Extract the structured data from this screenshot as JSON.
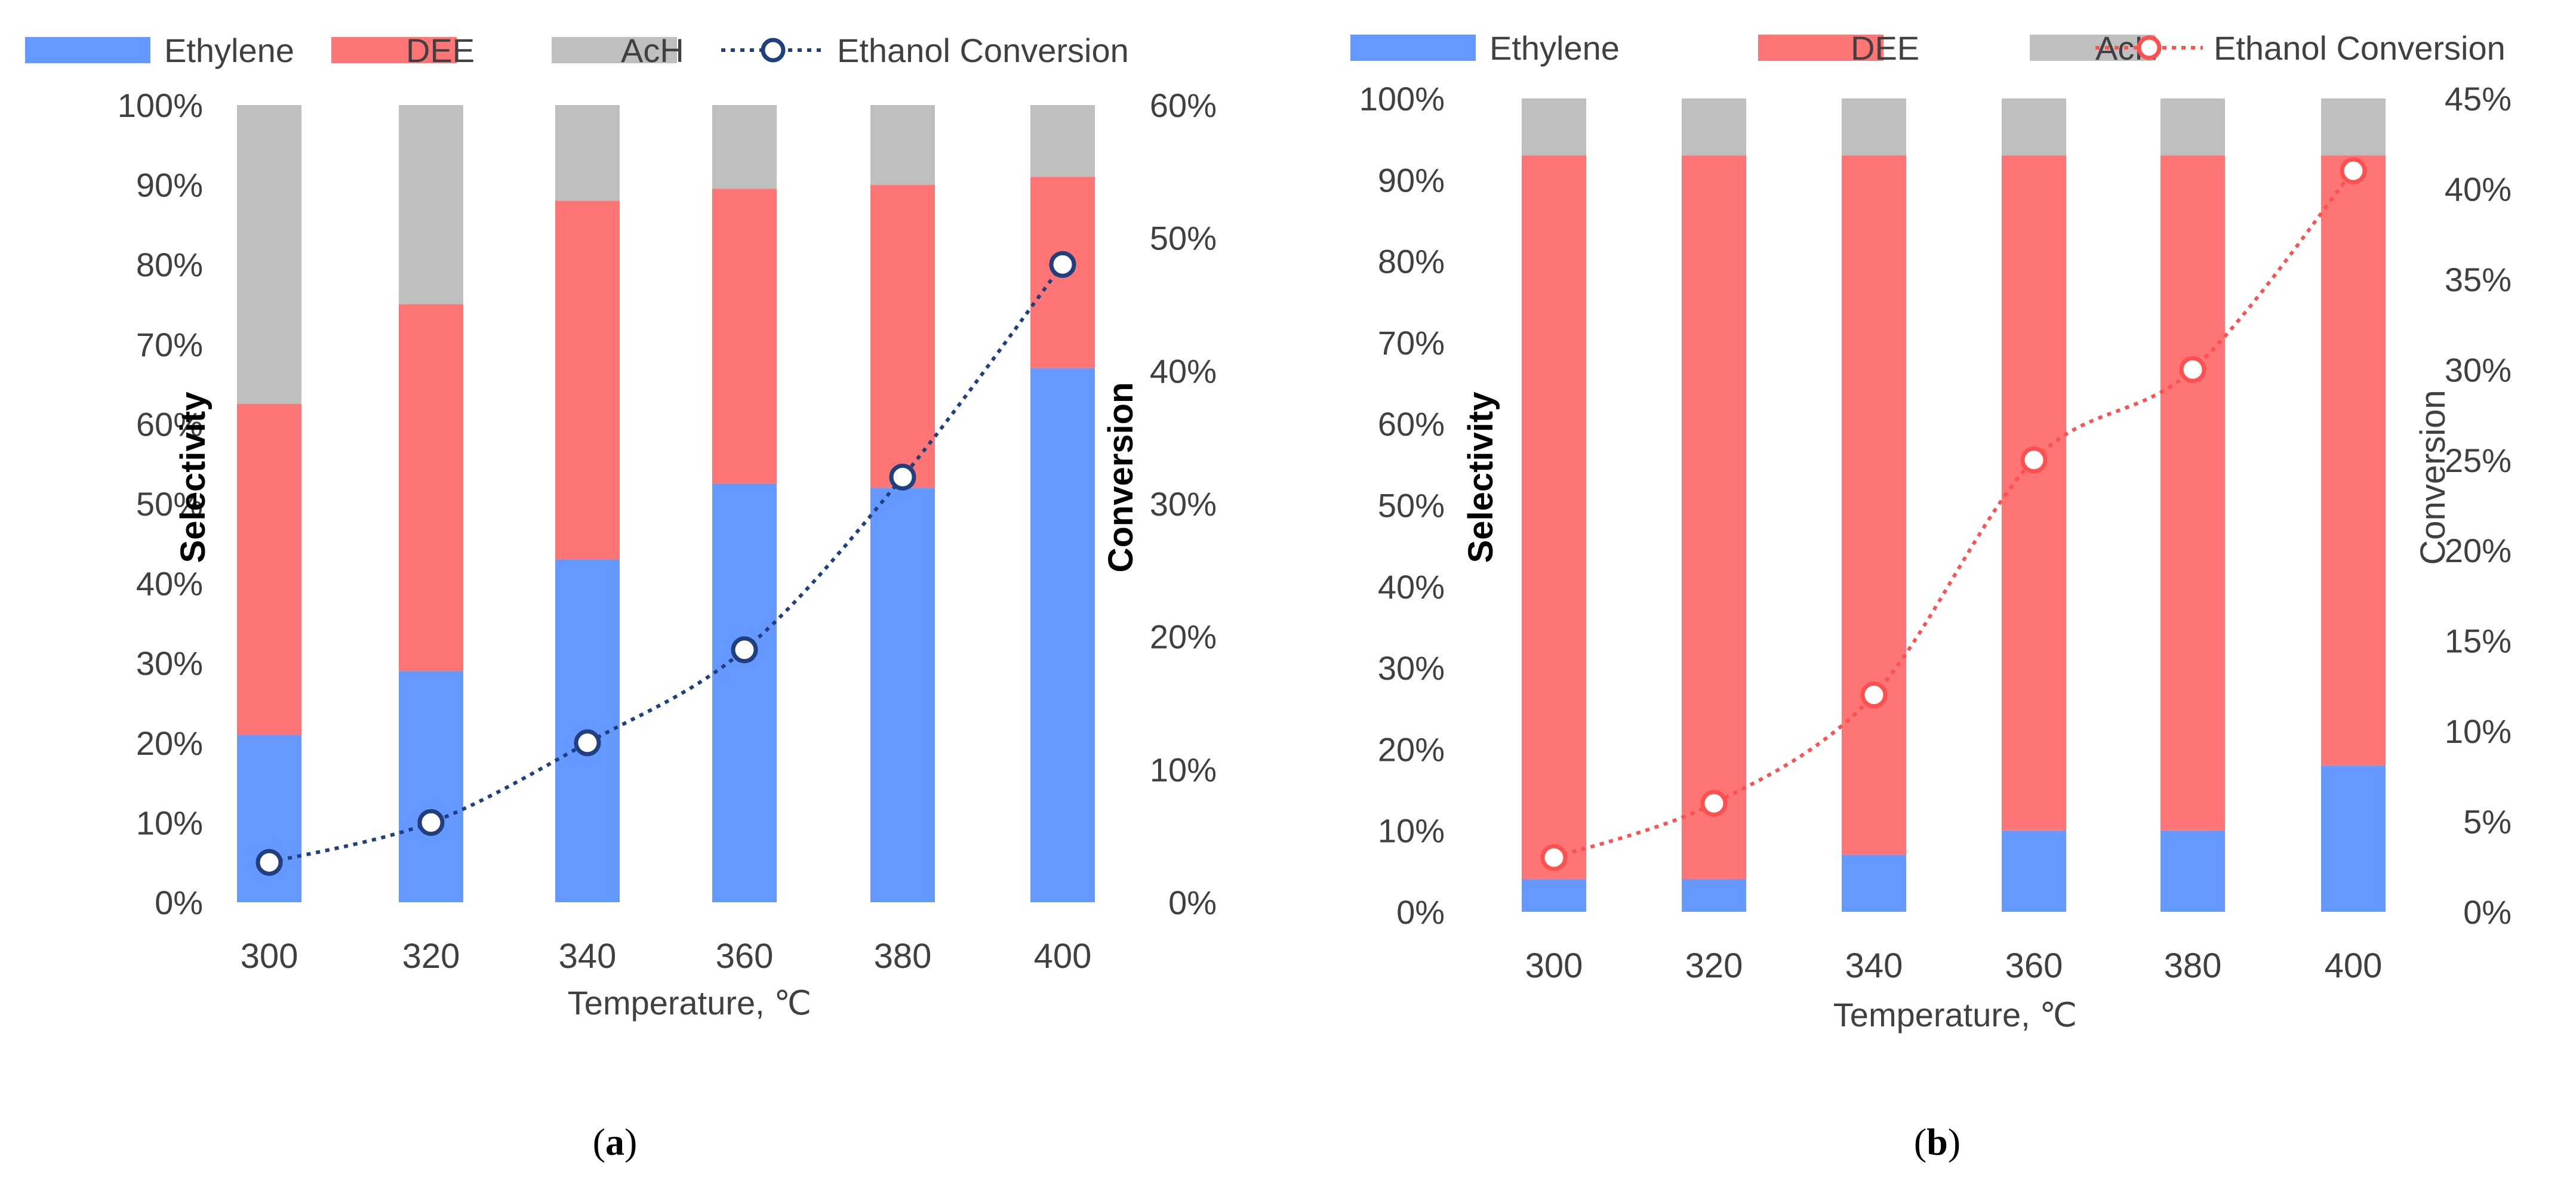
{
  "chart_data": [
    {
      "type": "bar",
      "stacked": true,
      "panel_label": "a",
      "xlabel": "Temperature, ℃",
      "ylabel": "Selectivity",
      "y2label": "Conversion",
      "categories": [
        "300",
        "320",
        "340",
        "360",
        "380",
        "400"
      ],
      "ylim": [
        0,
        100
      ],
      "y_ticks": [
        "0%",
        "10%",
        "20%",
        "30%",
        "40%",
        "50%",
        "60%",
        "70%",
        "80%",
        "90%",
        "100%"
      ],
      "y2lim": [
        0,
        60
      ],
      "y2_ticks": [
        "0%",
        "10%",
        "20%",
        "30%",
        "40%",
        "50%",
        "60%"
      ],
      "series": [
        {
          "name": "Ethylene",
          "kind": "bar",
          "color": "#6699FF",
          "values": [
            21,
            29,
            43,
            52.5,
            52,
            67
          ]
        },
        {
          "name": "DEE",
          "kind": "bar",
          "color": "#FF7575",
          "values": [
            41.5,
            46,
            45,
            37,
            38,
            24
          ]
        },
        {
          "name": "AcH",
          "kind": "bar",
          "color": "#BFBFBF",
          "values": [
            37.5,
            25,
            12,
            10.5,
            10,
            9
          ]
        },
        {
          "name": "Ethanol Conversion",
          "kind": "line",
          "axis": "secondary",
          "color": "#1F3F7F",
          "marker_face": "#ffffff",
          "values": [
            3,
            6,
            12,
            19,
            32,
            48
          ]
        }
      ],
      "legend": "top"
    },
    {
      "type": "bar",
      "stacked": true,
      "panel_label": "b",
      "xlabel": "Temperature, ℃",
      "ylabel": "Selectivity",
      "y2label": "Conversion",
      "categories": [
        "300",
        "320",
        "340",
        "360",
        "380",
        "400"
      ],
      "ylim": [
        0,
        100
      ],
      "y_ticks": [
        "0%",
        "10%",
        "20%",
        "30%",
        "40%",
        "50%",
        "60%",
        "70%",
        "80%",
        "90%",
        "100%"
      ],
      "y2lim": [
        0,
        45
      ],
      "y2_ticks": [
        "0%",
        "5%",
        "10%",
        "15%",
        "20%",
        "25%",
        "30%",
        "35%",
        "40%",
        "45%"
      ],
      "series": [
        {
          "name": "Ethylene",
          "kind": "bar",
          "color": "#6699FF",
          "values": [
            4,
            4,
            7,
            10,
            10,
            18
          ]
        },
        {
          "name": "DEE",
          "kind": "bar",
          "color": "#FF7575",
          "values": [
            89,
            89,
            86,
            83,
            83,
            75
          ]
        },
        {
          "name": "AcH",
          "kind": "bar",
          "color": "#BFBFBF",
          "values": [
            7,
            7,
            7,
            7,
            7,
            7
          ]
        },
        {
          "name": "Ethanol Conversion",
          "kind": "line",
          "axis": "secondary",
          "color": "#FF5050",
          "marker_face": "#ffffff",
          "values": [
            3,
            6,
            12,
            25,
            30,
            41
          ]
        }
      ],
      "legend": "top"
    }
  ]
}
